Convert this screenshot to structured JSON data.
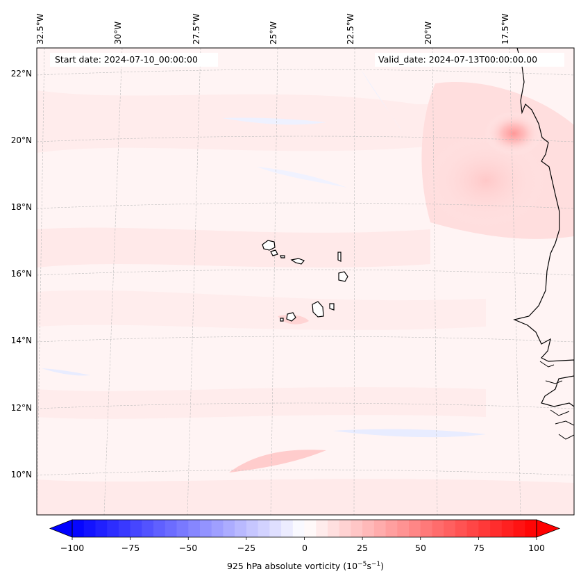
{
  "map": {
    "start_date": "Start date: 2024-07-10_00:00:00",
    "valid_date": "Valid_date: 2024-07-13T00:00:00.00",
    "lon_labels": [
      "32.5°W",
      "30°W",
      "27.5°W",
      "25°W",
      "22.5°W",
      "20°W",
      "17.5°W"
    ],
    "lat_labels": [
      "22°N",
      "20°N",
      "18°N",
      "16°N",
      "14°N",
      "12°N",
      "10°N"
    ],
    "field": "925 hPa absolute vorticity",
    "colors": {
      "neg": "#0000ff",
      "neutral": "#ffffff",
      "pos": "#ff0000",
      "coast": "#000000",
      "grid": "#b0b0b0"
    }
  },
  "colorbar": {
    "ticks": [
      "−100",
      "−75",
      "−50",
      "−25",
      "0",
      "25",
      "50",
      "75",
      "100"
    ],
    "label_text": "925 hPa absolute vorticity (10",
    "label_exp1": "−5",
    "label_mid": "s",
    "label_exp2": "−1",
    "label_end": ")"
  }
}
